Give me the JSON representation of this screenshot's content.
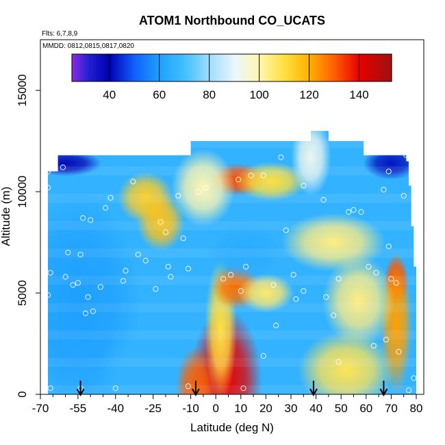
{
  "chart_data": {
    "type": "heatmap",
    "title": "ATOM1 Northbound CO_UCATS",
    "note_flights": "Flts: 6,7,8,9",
    "note_dates": "MMDD: 0812,0815,0817,0820",
    "xlabel": "Latitude (deg N)",
    "ylabel": "Altitude (m)",
    "xlim": [
      -70,
      83
    ],
    "ylim": [
      0,
      17500
    ],
    "x_major_ticks": [
      -70,
      -55,
      -40,
      -25,
      -10,
      0,
      10,
      20,
      30,
      40,
      50,
      60,
      70,
      80
    ],
    "x_minor_ticks": [
      -65,
      -60,
      -50,
      -45,
      -35,
      -30,
      -20,
      -15,
      -5,
      5,
      15,
      25,
      35,
      45,
      55,
      65,
      75
    ],
    "y_ticks": [
      0,
      5000,
      10000,
      15000
    ],
    "colorbar": {
      "range": [
        25,
        153
      ],
      "tick_values": [
        40,
        60,
        80,
        100,
        120,
        140
      ],
      "divider_values": [
        40,
        60,
        80,
        100,
        120,
        140
      ],
      "colormap": "purple-blue-white-yellow-red"
    },
    "domain_columns": [
      {
        "lat": -67,
        "top": 11000
      },
      {
        "lat": -63,
        "top": 11800
      },
      {
        "lat": -55,
        "top": 11800
      },
      {
        "lat": -45,
        "top": 11800
      },
      {
        "lat": -33,
        "top": 11800
      },
      {
        "lat": -25,
        "top": 11800
      },
      {
        "lat": -17,
        "top": 11800
      },
      {
        "lat": -10,
        "top": 12500
      },
      {
        "lat": 0,
        "top": 12500
      },
      {
        "lat": 10,
        "top": 12500
      },
      {
        "lat": 20,
        "top": 12500
      },
      {
        "lat": 30,
        "top": 12500
      },
      {
        "lat": 38,
        "top": 13000
      },
      {
        "lat": 45,
        "top": 12500
      },
      {
        "lat": 58,
        "top": 12500
      },
      {
        "lat": 59,
        "top": 11800
      },
      {
        "lat": 70,
        "top": 11800
      },
      {
        "lat": 76,
        "top": 11500
      },
      {
        "lat": 77,
        "top": 10300
      },
      {
        "lat": 78,
        "top": 8300
      },
      {
        "lat": 79,
        "top": 6300
      },
      {
        "lat": 80,
        "top": 2000
      },
      {
        "lat": 80,
        "top": 0
      }
    ],
    "features": [
      {
        "lat": 4,
        "alt": 700,
        "value": 140,
        "sx": 9,
        "sy": 2200
      },
      {
        "lat": -8,
        "alt": 300,
        "value": 130,
        "sx": 5,
        "sy": 1300
      },
      {
        "lat": 2,
        "alt": 3200,
        "value": 110,
        "sx": 4,
        "sy": 2200
      },
      {
        "lat": 8,
        "alt": 5300,
        "value": 128,
        "sx": 6,
        "sy": 700
      },
      {
        "lat": 20,
        "alt": 5000,
        "value": 106,
        "sx": 7,
        "sy": 600
      },
      {
        "lat": 9,
        "alt": 10600,
        "value": 132,
        "sx": 7,
        "sy": 500
      },
      {
        "lat": 22,
        "alt": 10500,
        "value": 110,
        "sx": 9,
        "sy": 600
      },
      {
        "lat": 72,
        "alt": 5600,
        "value": 135,
        "sx": 3,
        "sy": 800
      },
      {
        "lat": 72,
        "alt": 3500,
        "value": 122,
        "sx": 4,
        "sy": 2200
      },
      {
        "lat": 52,
        "alt": 1200,
        "value": 108,
        "sx": 12,
        "sy": 1200
      },
      {
        "lat": 57,
        "alt": 4600,
        "value": 104,
        "sx": 9,
        "sy": 1400
      },
      {
        "lat": -28,
        "alt": 9700,
        "value": 114,
        "sx": 7,
        "sy": 800
      },
      {
        "lat": -22,
        "alt": 8500,
        "value": 116,
        "sx": 6,
        "sy": 900
      },
      {
        "lat": 47,
        "alt": 7500,
        "value": 104,
        "sx": 13,
        "sy": 900
      },
      {
        "lat": -5,
        "alt": 10200,
        "value": 100,
        "sx": 8,
        "sy": 1200
      },
      {
        "lat": 38,
        "alt": 11700,
        "value": 92,
        "sx": 5,
        "sy": 1200
      },
      {
        "lat": -60,
        "alt": 11400,
        "value": 38,
        "sx": 9,
        "sy": 400
      },
      {
        "lat": 70,
        "alt": 11400,
        "value": 42,
        "sx": 7,
        "sy": 500
      },
      {
        "lat": -55,
        "alt": 4500,
        "value": 60,
        "sx": 16,
        "sy": 3500
      },
      {
        "lat": -30,
        "alt": 1200,
        "value": 66,
        "sx": 10,
        "sy": 1300
      },
      {
        "lat": 12,
        "alt": 7000,
        "value": 64,
        "sx": 10,
        "sy": 900
      }
    ],
    "sample_points": [
      {
        "lat": -67,
        "alt": 10200
      },
      {
        "lat": -67,
        "alt": 11000
      },
      {
        "lat": -66,
        "alt": 6000
      },
      {
        "lat": -67,
        "alt": 4900
      },
      {
        "lat": -66,
        "alt": 300
      },
      {
        "lat": -61,
        "alt": 11200
      },
      {
        "lat": -60,
        "alt": 5800
      },
      {
        "lat": -59,
        "alt": 7000
      },
      {
        "lat": -57,
        "alt": 5400
      },
      {
        "lat": -54,
        "alt": 300
      },
      {
        "lat": -55,
        "alt": 5500
      },
      {
        "lat": -54,
        "alt": 6900
      },
      {
        "lat": -53,
        "alt": 8700
      },
      {
        "lat": -52,
        "alt": 4000
      },
      {
        "lat": -51,
        "alt": 4800
      },
      {
        "lat": -50,
        "alt": 8600
      },
      {
        "lat": -49,
        "alt": 4100
      },
      {
        "lat": -46,
        "alt": 5300
      },
      {
        "lat": -44,
        "alt": 9200
      },
      {
        "lat": -42,
        "alt": 9700
      },
      {
        "lat": -40,
        "alt": 300
      },
      {
        "lat": -37,
        "alt": 5600
      },
      {
        "lat": -36,
        "alt": 6100
      },
      {
        "lat": -33,
        "alt": 10500
      },
      {
        "lat": -31,
        "alt": 6900
      },
      {
        "lat": -28,
        "alt": 6600
      },
      {
        "lat": -24,
        "alt": 5200
      },
      {
        "lat": -22,
        "alt": 8500
      },
      {
        "lat": -20,
        "alt": 8000
      },
      {
        "lat": -19,
        "alt": 6300
      },
      {
        "lat": -18,
        "alt": 5800
      },
      {
        "lat": -15,
        "alt": 12000
      },
      {
        "lat": -15,
        "alt": 9800
      },
      {
        "lat": -13,
        "alt": 7700
      },
      {
        "lat": -11,
        "alt": 6200
      },
      {
        "lat": -11,
        "alt": 400
      },
      {
        "lat": -7,
        "alt": 10000
      },
      {
        "lat": -4,
        "alt": 10200
      },
      {
        "lat": 3,
        "alt": 5700
      },
      {
        "lat": 6,
        "alt": 5900
      },
      {
        "lat": 9,
        "alt": 10600
      },
      {
        "lat": 10,
        "alt": 5100
      },
      {
        "lat": 12,
        "alt": 6300
      },
      {
        "lat": 14,
        "alt": 10800
      },
      {
        "lat": 19,
        "alt": 10800
      },
      {
        "lat": 11,
        "alt": 300
      },
      {
        "lat": 19,
        "alt": 1900
      },
      {
        "lat": 23,
        "alt": 5400
      },
      {
        "lat": 24,
        "alt": 3400
      },
      {
        "lat": 26,
        "alt": 11700
      },
      {
        "lat": 28,
        "alt": 8100
      },
      {
        "lat": 31,
        "alt": 5900
      },
      {
        "lat": 32,
        "alt": 4700
      },
      {
        "lat": 35,
        "alt": 5100
      },
      {
        "lat": 35,
        "alt": 10300
      },
      {
        "lat": 43,
        "alt": 9600
      },
      {
        "lat": 44,
        "alt": 4800
      },
      {
        "lat": 47,
        "alt": 3900
      },
      {
        "lat": 49,
        "alt": 5700
      },
      {
        "lat": 49,
        "alt": 1600
      },
      {
        "lat": 53,
        "alt": 9000
      },
      {
        "lat": 55,
        "alt": 9100
      },
      {
        "lat": 58,
        "alt": 9000
      },
      {
        "lat": 61,
        "alt": 6300
      },
      {
        "lat": 63,
        "alt": 2400
      },
      {
        "lat": 64,
        "alt": 6000
      },
      {
        "lat": 67,
        "alt": 10100
      },
      {
        "lat": 68,
        "alt": 2700
      },
      {
        "lat": 69,
        "alt": 7300
      },
      {
        "lat": 69,
        "alt": 11000
      },
      {
        "lat": 70,
        "alt": 5700
      },
      {
        "lat": 72,
        "alt": 5500
      },
      {
        "lat": 73,
        "alt": 2100
      },
      {
        "lat": 75,
        "alt": 9800
      },
      {
        "lat": 76,
        "alt": 11800
      },
      {
        "lat": 77,
        "alt": 200
      },
      {
        "lat": 79,
        "alt": 800
      }
    ],
    "arrows": [
      -54,
      -8,
      39,
      67
    ]
  }
}
